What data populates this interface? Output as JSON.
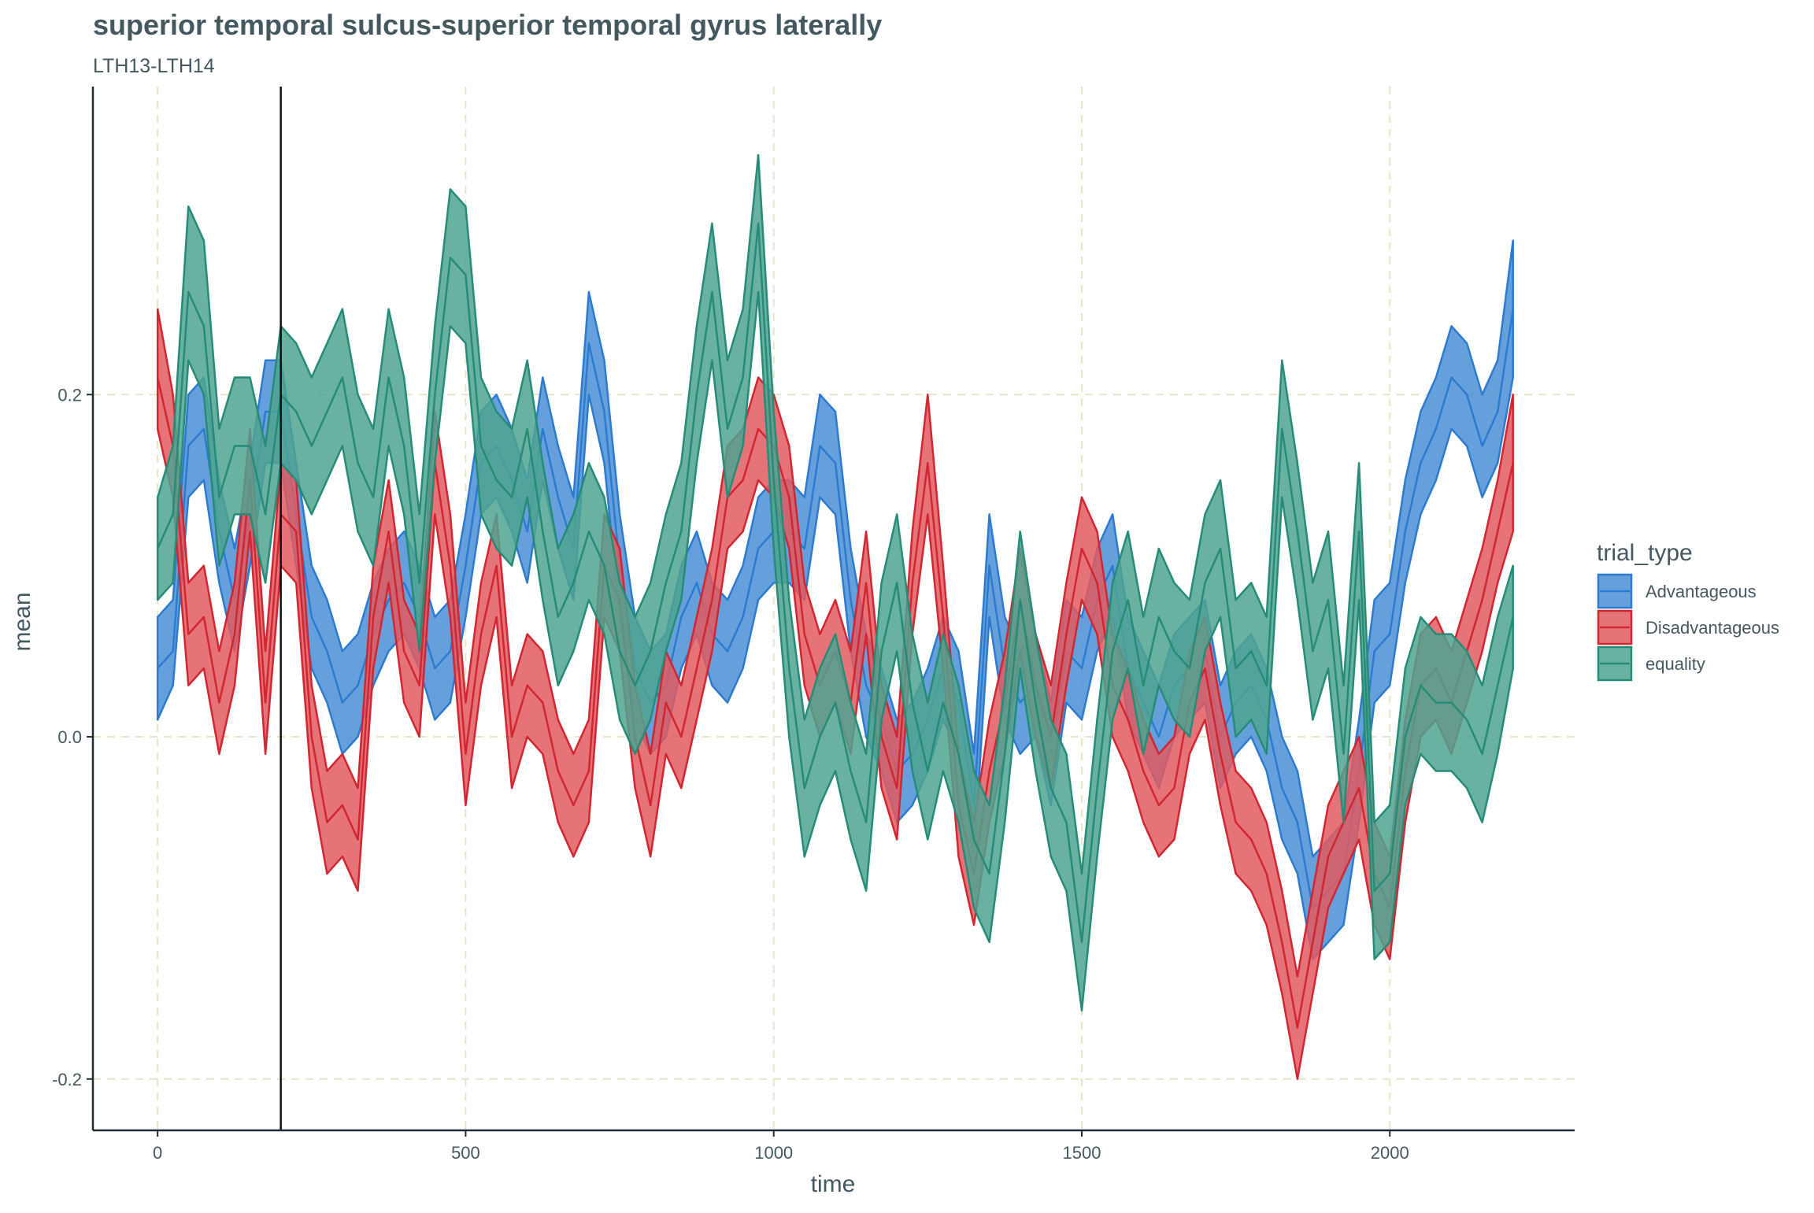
{
  "chart_data": {
    "type": "area",
    "title": "superior temporal sulcus-superior temporal gyrus laterally",
    "subtitle": "LTH13-LTH14",
    "xlabel": "time",
    "ylabel": "mean",
    "xlim": [
      -105,
      2300
    ],
    "ylim": [
      -0.23,
      0.38
    ],
    "x_ticks": [
      0,
      500,
      1000,
      1500,
      2000
    ],
    "x_tick_labels": [
      "0",
      "500",
      "1000",
      "1500",
      "2000"
    ],
    "y_ticks": [
      -0.2,
      0.0,
      0.2
    ],
    "y_tick_labels": [
      "-0.2",
      "0.0",
      "0.2"
    ],
    "grid": true,
    "vline_x": 200,
    "legend": {
      "title": "trial_type",
      "placement": "right"
    },
    "series": [
      {
        "name": "Advantageous",
        "color": "#2c7bd0",
        "fill": "#4a8fd6",
        "x": [
          0,
          25,
          50,
          75,
          100,
          125,
          150,
          175,
          200,
          225,
          250,
          275,
          300,
          325,
          350,
          375,
          400,
          425,
          450,
          475,
          500,
          525,
          550,
          575,
          600,
          625,
          650,
          675,
          700,
          725,
          750,
          775,
          800,
          825,
          850,
          875,
          900,
          925,
          950,
          975,
          1000,
          1025,
          1050,
          1075,
          1100,
          1125,
          1150,
          1175,
          1200,
          1225,
          1250,
          1275,
          1300,
          1325,
          1350,
          1375,
          1400,
          1425,
          1450,
          1475,
          1500,
          1525,
          1550,
          1575,
          1600,
          1625,
          1650,
          1675,
          1700,
          1725,
          1750,
          1775,
          1800,
          1825,
          1850,
          1875,
          1900,
          1925,
          1950,
          1975,
          2000,
          2025,
          2050,
          2075,
          2100,
          2125,
          2150,
          2175,
          2200
        ],
        "mean": [
          0.04,
          0.05,
          0.17,
          0.18,
          0.12,
          0.08,
          0.13,
          0.19,
          0.19,
          0.13,
          0.07,
          0.05,
          0.02,
          0.03,
          0.06,
          0.08,
          0.09,
          0.07,
          0.04,
          0.05,
          0.1,
          0.16,
          0.17,
          0.15,
          0.12,
          0.18,
          0.14,
          0.11,
          0.23,
          0.19,
          0.1,
          0.04,
          0.02,
          0.03,
          0.07,
          0.09,
          0.06,
          0.05,
          0.07,
          0.11,
          0.12,
          0.12,
          0.11,
          0.17,
          0.16,
          0.08,
          0.03,
          0.01,
          -0.02,
          -0.01,
          0.01,
          0.04,
          0.02,
          -0.04,
          0.1,
          0.04,
          0.02,
          0.03,
          -0.01,
          0.05,
          0.04,
          0.08,
          0.1,
          0.04,
          0.02,
          0.0,
          0.03,
          0.04,
          0.05,
          0.0,
          0.02,
          0.03,
          0.01,
          -0.03,
          -0.05,
          -0.1,
          -0.09,
          -0.08,
          -0.02,
          0.05,
          0.06,
          0.12,
          0.16,
          0.18,
          0.21,
          0.2,
          0.17,
          0.19,
          0.25
        ],
        "lower": [
          0.01,
          0.03,
          0.14,
          0.15,
          0.09,
          0.05,
          0.1,
          0.16,
          0.16,
          0.1,
          0.04,
          0.02,
          -0.01,
          0.0,
          0.03,
          0.05,
          0.06,
          0.04,
          0.01,
          0.02,
          0.07,
          0.13,
          0.14,
          0.12,
          0.09,
          0.15,
          0.11,
          0.08,
          0.2,
          0.16,
          0.07,
          0.01,
          -0.01,
          0.0,
          0.04,
          0.06,
          0.03,
          0.02,
          0.04,
          0.08,
          0.09,
          0.09,
          0.08,
          0.14,
          0.13,
          0.05,
          0.0,
          -0.02,
          -0.05,
          -0.04,
          -0.02,
          0.01,
          -0.01,
          -0.07,
          0.07,
          0.01,
          -0.01,
          0.0,
          -0.04,
          0.02,
          0.01,
          0.05,
          0.07,
          0.01,
          -0.01,
          -0.03,
          0.0,
          0.01,
          0.02,
          -0.03,
          -0.01,
          0.0,
          -0.02,
          -0.06,
          -0.08,
          -0.13,
          -0.12,
          -0.11,
          -0.05,
          0.02,
          0.03,
          0.09,
          0.13,
          0.15,
          0.18,
          0.17,
          0.14,
          0.16,
          0.21
        ],
        "upper": [
          0.07,
          0.08,
          0.2,
          0.21,
          0.15,
          0.11,
          0.16,
          0.22,
          0.22,
          0.16,
          0.1,
          0.08,
          0.05,
          0.06,
          0.09,
          0.11,
          0.12,
          0.1,
          0.07,
          0.08,
          0.13,
          0.19,
          0.2,
          0.18,
          0.15,
          0.21,
          0.17,
          0.14,
          0.26,
          0.22,
          0.13,
          0.07,
          0.05,
          0.06,
          0.1,
          0.12,
          0.09,
          0.08,
          0.1,
          0.14,
          0.15,
          0.15,
          0.14,
          0.2,
          0.19,
          0.11,
          0.06,
          0.04,
          0.01,
          0.02,
          0.04,
          0.07,
          0.05,
          -0.01,
          0.13,
          0.07,
          0.05,
          0.06,
          0.02,
          0.08,
          0.07,
          0.11,
          0.13,
          0.07,
          0.05,
          0.03,
          0.06,
          0.07,
          0.08,
          0.03,
          0.05,
          0.06,
          0.04,
          0.0,
          -0.02,
          -0.07,
          -0.06,
          -0.05,
          0.01,
          0.08,
          0.09,
          0.15,
          0.19,
          0.21,
          0.24,
          0.23,
          0.2,
          0.22,
          0.29
        ]
      },
      {
        "name": "Disadvantageous",
        "color": "#d22630",
        "fill": "#e05a60",
        "x": [
          0,
          25,
          50,
          75,
          100,
          125,
          150,
          175,
          200,
          225,
          250,
          275,
          300,
          325,
          350,
          375,
          400,
          425,
          450,
          475,
          500,
          525,
          550,
          575,
          600,
          625,
          650,
          675,
          700,
          725,
          750,
          775,
          800,
          825,
          850,
          875,
          900,
          925,
          950,
          975,
          1000,
          1025,
          1050,
          1075,
          1100,
          1125,
          1150,
          1175,
          1200,
          1225,
          1250,
          1275,
          1300,
          1325,
          1350,
          1375,
          1400,
          1425,
          1450,
          1475,
          1500,
          1525,
          1550,
          1575,
          1600,
          1625,
          1650,
          1675,
          1700,
          1725,
          1750,
          1775,
          1800,
          1825,
          1850,
          1875,
          1900,
          1925,
          1950,
          1975,
          2000,
          2025,
          2050,
          2075,
          2100,
          2125,
          2150,
          2175,
          2200
        ],
        "mean": [
          0.21,
          0.17,
          0.06,
          0.07,
          0.02,
          0.06,
          0.15,
          0.02,
          0.13,
          0.12,
          0.0,
          -0.05,
          -0.04,
          -0.06,
          0.07,
          0.12,
          0.05,
          0.03,
          0.16,
          0.1,
          -0.01,
          0.06,
          0.1,
          0.0,
          0.03,
          0.02,
          -0.02,
          -0.04,
          -0.02,
          0.1,
          0.08,
          0.0,
          -0.04,
          0.02,
          0.0,
          0.04,
          0.08,
          0.14,
          0.15,
          0.18,
          0.17,
          0.14,
          0.06,
          0.03,
          0.05,
          0.02,
          0.09,
          0.0,
          -0.03,
          0.09,
          0.16,
          0.07,
          -0.04,
          -0.08,
          -0.02,
          0.02,
          0.08,
          0.03,
          0.0,
          0.06,
          0.11,
          0.09,
          0.03,
          0.01,
          -0.02,
          -0.04,
          -0.03,
          0.02,
          0.04,
          -0.01,
          -0.05,
          -0.06,
          -0.08,
          -0.12,
          -0.17,
          -0.12,
          -0.07,
          -0.05,
          -0.03,
          -0.08,
          -0.1,
          -0.02,
          0.03,
          0.04,
          0.02,
          0.05,
          0.08,
          0.12,
          0.16
        ],
        "lower": [
          0.18,
          0.14,
          0.03,
          0.04,
          -0.01,
          0.03,
          0.12,
          -0.01,
          0.1,
          0.09,
          -0.03,
          -0.08,
          -0.07,
          -0.09,
          0.04,
          0.09,
          0.02,
          0.0,
          0.13,
          0.07,
          -0.04,
          0.03,
          0.07,
          -0.03,
          0.0,
          -0.01,
          -0.05,
          -0.07,
          -0.05,
          0.07,
          0.05,
          -0.03,
          -0.07,
          -0.01,
          -0.03,
          0.01,
          0.05,
          0.11,
          0.12,
          0.15,
          0.14,
          0.11,
          0.03,
          0.0,
          0.02,
          -0.01,
          0.06,
          -0.03,
          -0.06,
          0.06,
          0.13,
          0.04,
          -0.07,
          -0.11,
          -0.05,
          -0.01,
          0.05,
          0.0,
          -0.03,
          0.03,
          0.08,
          0.06,
          0.0,
          -0.02,
          -0.05,
          -0.07,
          -0.06,
          -0.01,
          0.01,
          -0.04,
          -0.08,
          -0.09,
          -0.11,
          -0.15,
          -0.2,
          -0.15,
          -0.1,
          -0.08,
          -0.06,
          -0.11,
          -0.13,
          -0.05,
          0.0,
          0.01,
          -0.01,
          0.02,
          0.05,
          0.09,
          0.12
        ],
        "upper": [
          0.25,
          0.2,
          0.09,
          0.1,
          0.05,
          0.09,
          0.18,
          0.05,
          0.16,
          0.15,
          0.03,
          -0.02,
          -0.01,
          -0.03,
          0.1,
          0.15,
          0.08,
          0.06,
          0.19,
          0.13,
          0.02,
          0.09,
          0.13,
          0.03,
          0.06,
          0.05,
          0.01,
          -0.01,
          0.01,
          0.13,
          0.11,
          0.03,
          -0.01,
          0.05,
          0.03,
          0.07,
          0.11,
          0.17,
          0.18,
          0.21,
          0.2,
          0.17,
          0.09,
          0.06,
          0.08,
          0.05,
          0.12,
          0.03,
          0.0,
          0.12,
          0.2,
          0.1,
          -0.01,
          -0.05,
          0.01,
          0.05,
          0.11,
          0.06,
          0.03,
          0.09,
          0.14,
          0.12,
          0.06,
          0.04,
          0.01,
          -0.01,
          0.0,
          0.05,
          0.07,
          0.02,
          -0.02,
          -0.03,
          -0.05,
          -0.09,
          -0.14,
          -0.09,
          -0.04,
          -0.02,
          0.0,
          -0.05,
          -0.07,
          0.01,
          0.06,
          0.07,
          0.05,
          0.08,
          0.11,
          0.15,
          0.2
        ]
      },
      {
        "name": "equality",
        "color": "#268c78",
        "fill": "#4fa391",
        "x": [
          0,
          25,
          50,
          75,
          100,
          125,
          150,
          175,
          200,
          225,
          250,
          275,
          300,
          325,
          350,
          375,
          400,
          425,
          450,
          475,
          500,
          525,
          550,
          575,
          600,
          625,
          650,
          675,
          700,
          725,
          750,
          775,
          800,
          825,
          850,
          875,
          900,
          925,
          950,
          975,
          1000,
          1025,
          1050,
          1075,
          1100,
          1125,
          1150,
          1175,
          1200,
          1225,
          1250,
          1275,
          1300,
          1325,
          1350,
          1375,
          1400,
          1425,
          1450,
          1475,
          1500,
          1525,
          1550,
          1575,
          1600,
          1625,
          1650,
          1675,
          1700,
          1725,
          1750,
          1775,
          1800,
          1825,
          1850,
          1875,
          1900,
          1925,
          1950,
          1975,
          2000,
          2025,
          2050,
          2075,
          2100,
          2125,
          2150,
          2175,
          2200
        ],
        "mean": [
          0.11,
          0.13,
          0.26,
          0.24,
          0.14,
          0.17,
          0.17,
          0.13,
          0.2,
          0.19,
          0.17,
          0.19,
          0.21,
          0.16,
          0.14,
          0.21,
          0.17,
          0.09,
          0.2,
          0.28,
          0.27,
          0.17,
          0.15,
          0.14,
          0.18,
          0.12,
          0.07,
          0.09,
          0.12,
          0.1,
          0.05,
          0.03,
          0.05,
          0.09,
          0.12,
          0.2,
          0.26,
          0.18,
          0.21,
          0.3,
          0.15,
          0.04,
          -0.03,
          0.0,
          0.02,
          -0.02,
          -0.05,
          0.05,
          0.09,
          0.02,
          -0.02,
          0.02,
          -0.01,
          -0.06,
          -0.08,
          -0.01,
          0.08,
          0.02,
          -0.03,
          -0.05,
          -0.12,
          -0.03,
          0.05,
          0.08,
          0.03,
          0.07,
          0.05,
          0.04,
          0.09,
          0.11,
          0.04,
          0.05,
          0.03,
          0.18,
          0.12,
          0.05,
          0.08,
          -0.01,
          0.12,
          -0.09,
          -0.08,
          0.0,
          0.03,
          0.02,
          0.02,
          0.01,
          -0.01,
          0.03,
          0.07
        ],
        "lower": [
          0.08,
          0.09,
          0.22,
          0.2,
          0.1,
          0.13,
          0.13,
          0.09,
          0.16,
          0.15,
          0.13,
          0.15,
          0.17,
          0.12,
          0.1,
          0.17,
          0.13,
          0.05,
          0.16,
          0.24,
          0.23,
          0.13,
          0.11,
          0.1,
          0.14,
          0.08,
          0.03,
          0.05,
          0.08,
          0.06,
          0.01,
          -0.01,
          0.01,
          0.05,
          0.08,
          0.16,
          0.22,
          0.14,
          0.17,
          0.26,
          0.11,
          0.0,
          -0.07,
          -0.04,
          -0.02,
          -0.06,
          -0.09,
          0.01,
          0.05,
          -0.02,
          -0.06,
          -0.02,
          -0.05,
          -0.1,
          -0.12,
          -0.05,
          0.04,
          -0.02,
          -0.07,
          -0.09,
          -0.16,
          -0.07,
          0.01,
          0.04,
          -0.01,
          0.03,
          0.01,
          0.0,
          0.05,
          0.07,
          0.0,
          0.01,
          -0.01,
          0.14,
          0.08,
          0.01,
          0.04,
          -0.05,
          0.08,
          -0.13,
          -0.12,
          -0.04,
          -0.01,
          -0.02,
          -0.02,
          -0.03,
          -0.05,
          -0.01,
          0.04
        ],
        "upper": [
          0.14,
          0.17,
          0.31,
          0.29,
          0.18,
          0.21,
          0.21,
          0.17,
          0.24,
          0.23,
          0.21,
          0.23,
          0.25,
          0.2,
          0.18,
          0.25,
          0.21,
          0.13,
          0.24,
          0.32,
          0.31,
          0.21,
          0.19,
          0.18,
          0.22,
          0.16,
          0.11,
          0.13,
          0.16,
          0.14,
          0.09,
          0.07,
          0.09,
          0.13,
          0.16,
          0.24,
          0.3,
          0.22,
          0.25,
          0.34,
          0.19,
          0.08,
          0.01,
          0.04,
          0.06,
          0.02,
          -0.01,
          0.09,
          0.13,
          0.06,
          0.02,
          0.06,
          0.03,
          -0.02,
          -0.04,
          0.03,
          0.12,
          0.06,
          0.01,
          -0.01,
          -0.08,
          0.01,
          0.09,
          0.12,
          0.07,
          0.11,
          0.09,
          0.08,
          0.13,
          0.15,
          0.08,
          0.09,
          0.07,
          0.22,
          0.16,
          0.09,
          0.12,
          0.03,
          0.16,
          -0.05,
          -0.04,
          0.04,
          0.07,
          0.06,
          0.06,
          0.05,
          0.03,
          0.07,
          0.1
        ]
      }
    ]
  }
}
